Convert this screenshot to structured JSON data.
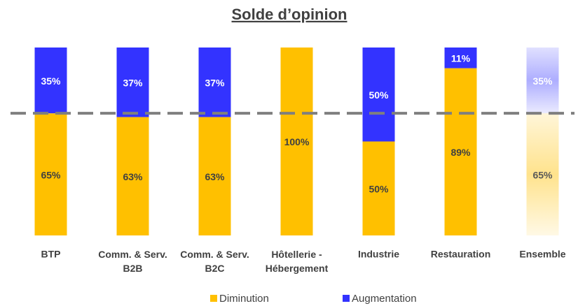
{
  "chart_data": {
    "type": "stacked_bar_100",
    "title": "Solde d’opinion",
    "categories": [
      "BTP",
      "Comm. & Serv.\nB2B",
      "Comm. & Serv.\nB2C",
      "Hôtellerie -\nHébergement",
      "Industrie",
      "Restauration",
      "Ensemble"
    ],
    "series": [
      {
        "name": "Diminution",
        "color": "#FFC000",
        "values": [
          65,
          63,
          63,
          100,
          50,
          89,
          65
        ],
        "value_labels": [
          "65%",
          "63%",
          "63%",
          "100%",
          "50%",
          "89%",
          "65%"
        ]
      },
      {
        "name": "Augmentation",
        "color": "#3333FF",
        "values": [
          35,
          37,
          37,
          0,
          50,
          11,
          35
        ],
        "value_labels": [
          "35%",
          "37%",
          "37%",
          null,
          "50%",
          "11%",
          "35%"
        ]
      }
    ],
    "ylim": [
      0,
      100
    ],
    "reference_line": 65,
    "faded": "Ensemble",
    "legend": "bottom"
  }
}
